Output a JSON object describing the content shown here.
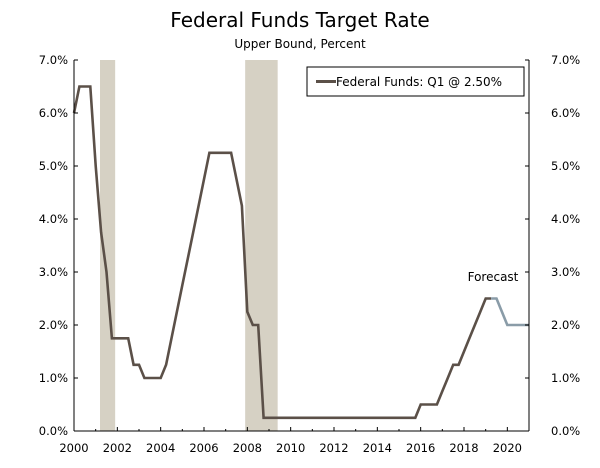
{
  "chart_data": {
    "type": "line",
    "title": "Federal Funds Target Rate",
    "subtitle": "Upper Bound, Percent",
    "xlabel": "",
    "ylabel": "",
    "xlim": [
      2000,
      2021
    ],
    "ylim": [
      0,
      7
    ],
    "x_ticks": [
      "2000",
      "2002",
      "2004",
      "2006",
      "2008",
      "2010",
      "2012",
      "2014",
      "2016",
      "2018",
      "2020"
    ],
    "x_tick_values": [
      2000,
      2002,
      2004,
      2006,
      2008,
      2010,
      2012,
      2014,
      2016,
      2018,
      2020
    ],
    "y_ticks": [
      "0.0%",
      "1.0%",
      "2.0%",
      "3.0%",
      "4.0%",
      "5.0%",
      "6.0%",
      "7.0%"
    ],
    "y_tick_values": [
      0,
      1,
      2,
      3,
      4,
      5,
      6,
      7
    ],
    "grid": false,
    "legend_position": "top-right",
    "recession_bands": [
      [
        2001.2,
        2001.9
      ],
      [
        2007.9,
        2009.4
      ]
    ],
    "series": [
      {
        "name": "Federal Funds: Q1 @ 2.50%",
        "color": "#5b5048",
        "points": [
          [
            2000.0,
            6.0
          ],
          [
            2000.25,
            6.5
          ],
          [
            2000.75,
            6.5
          ],
          [
            2001.0,
            5.0
          ],
          [
            2001.25,
            3.75
          ],
          [
            2001.5,
            3.0
          ],
          [
            2001.75,
            1.75
          ],
          [
            2002.5,
            1.75
          ],
          [
            2002.75,
            1.25
          ],
          [
            2003.0,
            1.25
          ],
          [
            2003.25,
            1.0
          ],
          [
            2004.0,
            1.0
          ],
          [
            2004.25,
            1.25
          ],
          [
            2005.0,
            2.75
          ],
          [
            2005.5,
            3.75
          ],
          [
            2006.0,
            4.75
          ],
          [
            2006.25,
            5.25
          ],
          [
            2007.25,
            5.25
          ],
          [
            2007.5,
            4.75
          ],
          [
            2007.75,
            4.25
          ],
          [
            2008.0,
            2.25
          ],
          [
            2008.25,
            2.0
          ],
          [
            2008.5,
            2.0
          ],
          [
            2008.75,
            0.25
          ],
          [
            2015.75,
            0.25
          ],
          [
            2016.0,
            0.5
          ],
          [
            2016.75,
            0.5
          ],
          [
            2017.0,
            0.75
          ],
          [
            2017.25,
            1.0
          ],
          [
            2017.5,
            1.25
          ],
          [
            2017.75,
            1.25
          ],
          [
            2018.0,
            1.5
          ],
          [
            2018.25,
            1.75
          ],
          [
            2018.75,
            2.25
          ],
          [
            2019.0,
            2.5
          ],
          [
            2019.25,
            2.5
          ]
        ]
      },
      {
        "name": "Forecast",
        "color": "#8a9ca8",
        "points": [
          [
            2019.25,
            2.5
          ],
          [
            2019.5,
            2.5
          ],
          [
            2019.75,
            2.25
          ],
          [
            2020.0,
            2.0
          ],
          [
            2021.0,
            2.0
          ]
        ]
      }
    ],
    "legend_label": "Federal Funds: Q1 @ 2.50%",
    "annotation": "Forecast",
    "colors": {
      "series": "#5b5048",
      "forecast": "#8a9ca8",
      "recession": "#d6d1c4",
      "axis": "#000000"
    }
  }
}
